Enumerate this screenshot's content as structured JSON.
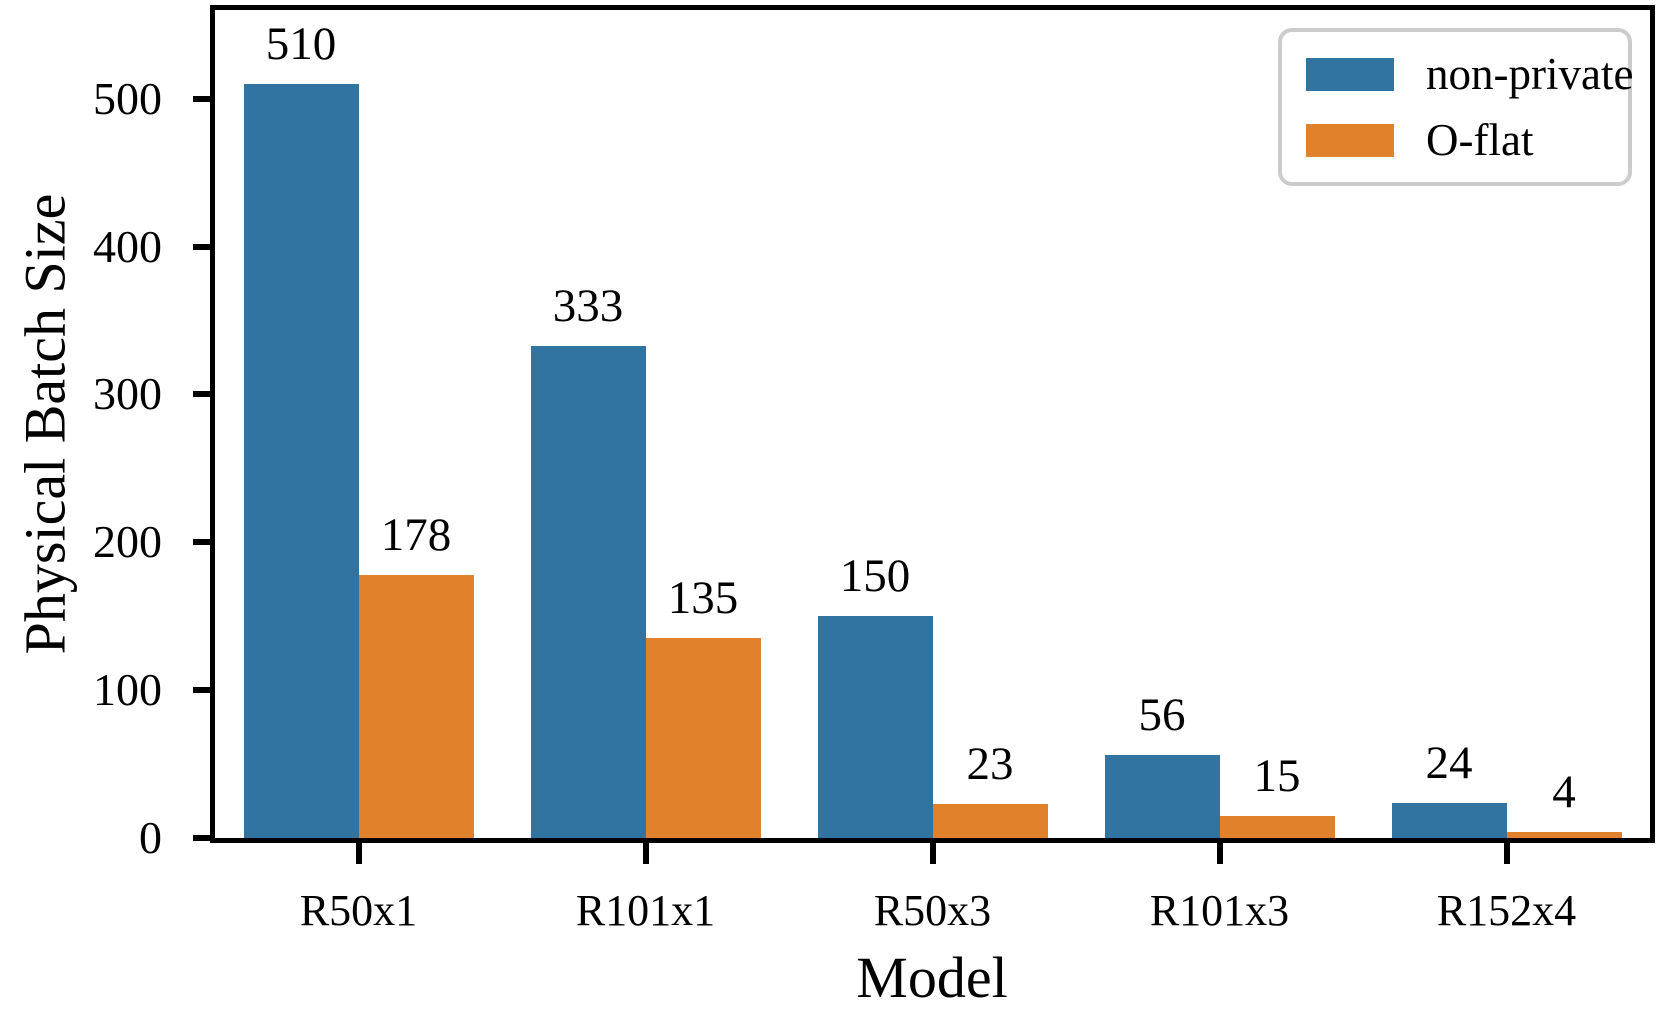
{
  "figure": {
    "background": "#ffffff",
    "axis_color": "#000000",
    "legend_border_color": "#cccccc"
  },
  "chart_data": {
    "type": "bar",
    "title": "",
    "xlabel": "Model",
    "ylabel": "Physical Batch Size",
    "categories": [
      "R50x1",
      "R101x1",
      "R50x3",
      "R101x3",
      "R152x4"
    ],
    "series": [
      {
        "name": "non-private",
        "color": "#3274a1",
        "values": [
          510,
          333,
          150,
          56,
          24
        ]
      },
      {
        "name": "O-flat",
        "color": "#e1812c",
        "values": [
          178,
          135,
          23,
          15,
          4
        ]
      }
    ],
    "yticks": [
      0,
      100,
      200,
      300,
      400,
      500
    ],
    "ylim": [
      0,
      560
    ],
    "grid": false,
    "legend_position": "upper-right",
    "bar_value_labels_shown": true
  }
}
